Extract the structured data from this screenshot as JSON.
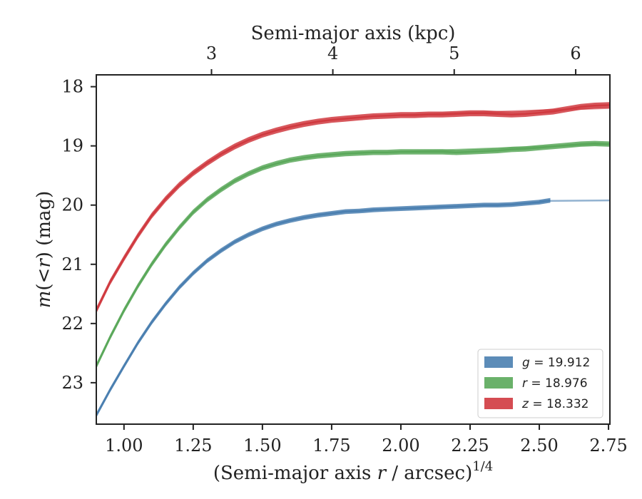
{
  "chart_data": {
    "type": "line",
    "title": "",
    "xlabel": "(Semi-major axis r / arcsec)^1/4",
    "xlabel_parts": {
      "pre": "(Semi-major axis ",
      "var": "r",
      "post": " / arcsec)",
      "sup": "1/4"
    },
    "ylabel": "m(<r) (mag)",
    "ylabel_parts": {
      "var": "m",
      "mid": "(<",
      "var2": "r",
      "post": ") (mag)"
    },
    "top_xlabel": "Semi-major axis (kpc)",
    "xlim": [
      0.9,
      2.755
    ],
    "ylim": [
      23.7,
      17.8
    ],
    "y_inverted": true,
    "x_ticks": [
      1.0,
      1.25,
      1.5,
      1.75,
      2.0,
      2.25,
      2.5,
      2.75
    ],
    "x_tick_labels": [
      "1.00",
      "1.25",
      "1.50",
      "1.75",
      "2.00",
      "2.25",
      "2.50",
      "2.75"
    ],
    "y_ticks": [
      18,
      19,
      20,
      21,
      22,
      23
    ],
    "y_tick_labels": [
      "18",
      "19",
      "20",
      "21",
      "22",
      "23"
    ],
    "top_ticks": [
      1.3161,
      1.7543,
      2.1927,
      2.6315
    ],
    "top_tick_labels": [
      "3",
      "4",
      "5",
      "6"
    ],
    "grid": false,
    "legend_position": "lower-right",
    "series": [
      {
        "name": "g",
        "legend_label": {
          "var": "g",
          "value": " = 19.912"
        },
        "color": "#4a7fb0",
        "x": [
          0.9,
          0.95,
          1.0,
          1.05,
          1.1,
          1.15,
          1.2,
          1.25,
          1.3,
          1.35,
          1.4,
          1.45,
          1.5,
          1.55,
          1.6,
          1.65,
          1.7,
          1.75,
          1.8,
          1.85,
          1.9,
          1.95,
          2.0,
          2.05,
          2.1,
          2.15,
          2.2,
          2.25,
          2.3,
          2.35,
          2.4,
          2.45,
          2.5,
          2.54
        ],
        "values": [
          23.55,
          23.12,
          22.72,
          22.33,
          21.98,
          21.67,
          21.39,
          21.15,
          20.94,
          20.77,
          20.62,
          20.5,
          20.4,
          20.32,
          20.26,
          20.21,
          20.17,
          20.14,
          20.11,
          20.1,
          20.08,
          20.07,
          20.06,
          20.05,
          20.04,
          20.03,
          20.02,
          20.01,
          20.0,
          20.0,
          19.99,
          19.97,
          19.95,
          19.92
        ],
        "band_halfwidth": 0.04,
        "model_x": [
          2.5,
          2.755
        ],
        "model_y": [
          19.93,
          19.92
        ]
      },
      {
        "name": "r",
        "legend_label": {
          "var": "r",
          "value": " = 18.976"
        },
        "color": "#5aa85a",
        "x": [
          0.9,
          0.95,
          1.0,
          1.05,
          1.1,
          1.15,
          1.2,
          1.25,
          1.3,
          1.35,
          1.4,
          1.45,
          1.5,
          1.55,
          1.6,
          1.65,
          1.7,
          1.75,
          1.8,
          1.85,
          1.9,
          1.95,
          2.0,
          2.05,
          2.1,
          2.15,
          2.2,
          2.25,
          2.3,
          2.35,
          2.4,
          2.45,
          2.5,
          2.55,
          2.6,
          2.65,
          2.7,
          2.755
        ],
        "values": [
          22.72,
          22.23,
          21.78,
          21.37,
          21.0,
          20.67,
          20.38,
          20.12,
          19.91,
          19.74,
          19.59,
          19.47,
          19.37,
          19.3,
          19.24,
          19.2,
          19.17,
          19.15,
          19.13,
          19.12,
          19.11,
          19.11,
          19.1,
          19.1,
          19.1,
          19.1,
          19.11,
          19.1,
          19.09,
          19.08,
          19.06,
          19.05,
          19.03,
          19.01,
          18.99,
          18.97,
          18.96,
          18.97
        ],
        "band_halfwidth": 0.045,
        "model_x": [
          2.0,
          2.755
        ],
        "model_y": [
          19.1,
          18.97
        ]
      },
      {
        "name": "z",
        "legend_label": {
          "var": "z",
          "value": " = 18.332"
        },
        "color": "#d0393f",
        "x": [
          0.9,
          0.95,
          1.0,
          1.05,
          1.1,
          1.15,
          1.2,
          1.25,
          1.3,
          1.35,
          1.4,
          1.45,
          1.5,
          1.55,
          1.6,
          1.65,
          1.7,
          1.75,
          1.8,
          1.85,
          1.9,
          1.95,
          2.0,
          2.05,
          2.1,
          2.15,
          2.2,
          2.25,
          2.3,
          2.35,
          2.4,
          2.45,
          2.5,
          2.55,
          2.6,
          2.65,
          2.7,
          2.755
        ],
        "values": [
          21.78,
          21.3,
          20.9,
          20.52,
          20.18,
          19.9,
          19.66,
          19.46,
          19.29,
          19.14,
          19.01,
          18.9,
          18.81,
          18.74,
          18.68,
          18.63,
          18.59,
          18.56,
          18.54,
          18.52,
          18.5,
          18.49,
          18.48,
          18.48,
          18.47,
          18.47,
          18.46,
          18.45,
          18.45,
          18.46,
          18.47,
          18.46,
          18.44,
          18.42,
          18.38,
          18.34,
          18.32,
          18.31
        ],
        "band_halfwidth": 0.05,
        "model_x": [
          2.0,
          2.755
        ],
        "model_y": [
          18.48,
          18.36
        ]
      }
    ]
  }
}
